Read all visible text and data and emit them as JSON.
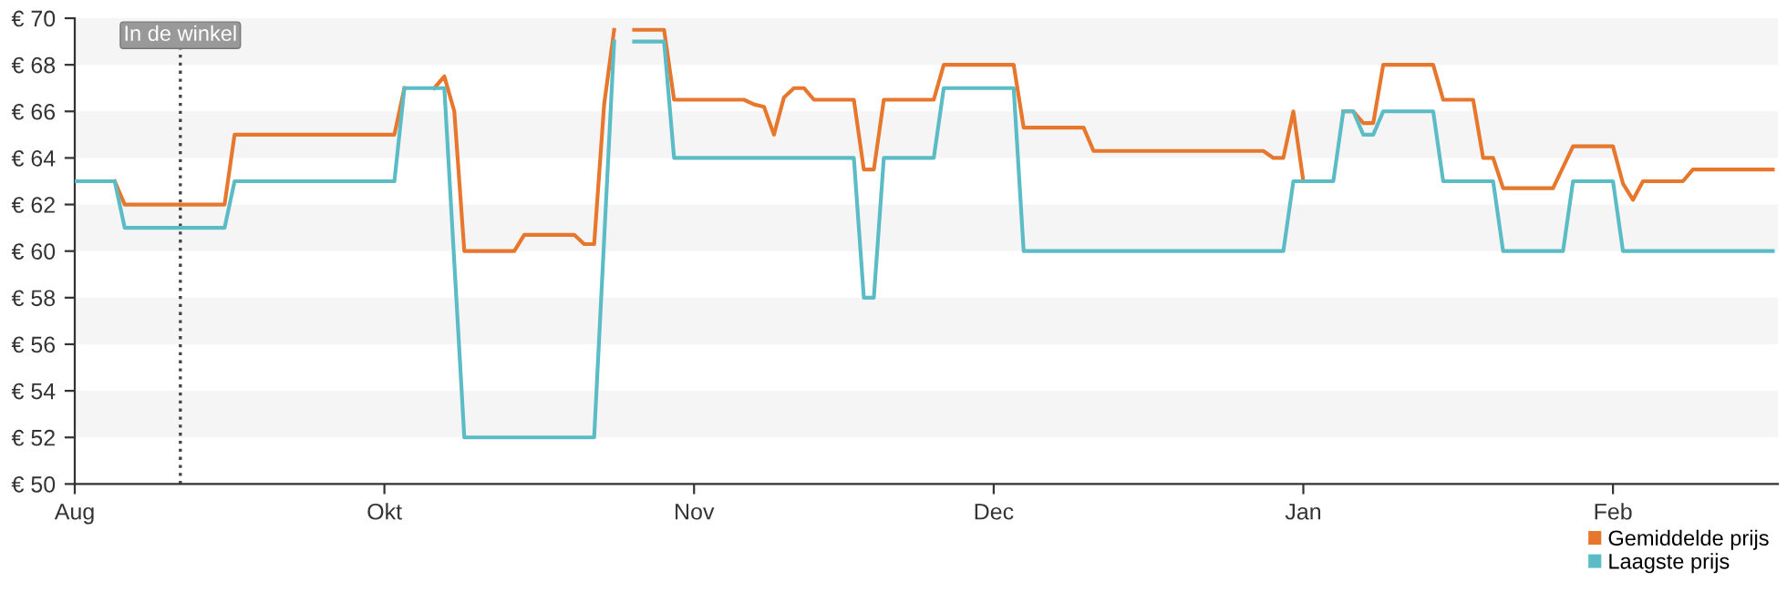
{
  "chart_data": {
    "type": "line",
    "categories": [
      "Aug",
      null,
      null,
      null,
      null,
      null,
      null,
      null,
      null,
      null,
      null,
      null,
      null,
      null,
      null,
      null,
      null,
      null,
      null,
      null,
      null,
      null,
      null,
      null,
      null,
      null,
      null,
      null,
      null,
      null,
      null,
      "Okt",
      null,
      null,
      null,
      null,
      null,
      null,
      null,
      null,
      null,
      null,
      null,
      null,
      null,
      null,
      null,
      null,
      null,
      null,
      null,
      null,
      null,
      null,
      null,
      null,
      null,
      null,
      null,
      null,
      null,
      null,
      "Nov",
      null,
      null,
      null,
      null,
      null,
      null,
      null,
      null,
      null,
      null,
      null,
      null,
      null,
      null,
      null,
      null,
      null,
      null,
      null,
      null,
      null,
      null,
      null,
      null,
      null,
      null,
      null,
      null,
      null,
      "Dec",
      null,
      null,
      null,
      null,
      null,
      null,
      null,
      null,
      null,
      null,
      null,
      null,
      null,
      null,
      null,
      null,
      null,
      null,
      null,
      null,
      null,
      null,
      null,
      null,
      null,
      null,
      null,
      null,
      null,
      null,
      "Jan",
      null,
      null,
      null,
      null,
      null,
      null,
      null,
      null,
      null,
      null,
      null,
      null,
      null,
      null,
      null,
      null,
      null,
      null,
      null,
      null,
      null,
      null,
      null,
      null,
      null,
      null,
      null,
      null,
      null,
      null,
      "Feb",
      null,
      null,
      null,
      null,
      null,
      null,
      null,
      null,
      null,
      null,
      null,
      null,
      null,
      null,
      null,
      null
    ],
    "series": [
      {
        "name": "Gemiddelde prijs",
        "color": "#e8772e",
        "values": [
          null,
          null,
          null,
          null,
          63,
          62,
          62,
          62,
          62,
          62,
          62,
          62,
          62,
          62,
          62,
          62,
          65,
          65,
          65,
          65,
          65,
          65,
          65,
          65,
          65,
          65,
          65,
          65,
          65,
          65,
          65,
          65,
          65,
          67,
          null,
          null,
          67,
          67.5,
          66,
          60,
          60,
          60,
          60,
          60,
          60,
          60.7,
          60.7,
          60.7,
          60.7,
          60.7,
          60.7,
          60.3,
          60.3,
          66.3,
          69.5,
          null,
          69.5,
          69.5,
          69.5,
          69.5,
          66.5,
          66.5,
          66.5,
          66.5,
          66.5,
          66.5,
          66.5,
          66.5,
          66.3,
          66.2,
          65,
          66.6,
          67,
          67,
          66.5,
          66.5,
          66.5,
          66.5,
          66.5,
          63.5,
          63.5,
          66.5,
          66.5,
          66.5,
          66.5,
          66.5,
          66.5,
          68,
          68,
          68,
          68,
          68,
          68,
          68,
          68,
          65.3,
          65.3,
          65.3,
          65.3,
          65.3,
          65.3,
          65.3,
          64.3,
          64.3,
          64.3,
          64.3,
          64.3,
          64.3,
          64.3,
          64.3,
          64.3,
          64.3,
          64.3,
          64.3,
          64.3,
          64.3,
          64.3,
          64.3,
          64.3,
          64.3,
          64,
          64,
          66,
          63,
          null,
          null,
          null,
          66,
          66,
          65.5,
          65.5,
          68,
          68,
          68,
          68,
          68,
          68,
          66.5,
          66.5,
          66.5,
          66.5,
          64,
          64,
          62.7,
          62.7,
          62.7,
          62.7,
          62.7,
          62.7,
          63.6,
          64.5,
          64.5,
          64.5,
          64.5,
          64.5,
          62.9,
          62.2,
          63,
          63,
          63,
          63,
          63,
          63.5,
          63.5,
          63.5,
          63.5,
          63.5,
          63.5,
          63.5,
          63.5,
          63.5
        ]
      },
      {
        "name": "Laagste prijs",
        "color": "#5bbcc6",
        "values": [
          63,
          63,
          63,
          63,
          63,
          61,
          61,
          61,
          61,
          61,
          61,
          61,
          61,
          61,
          61,
          61,
          63,
          63,
          63,
          63,
          63,
          63,
          63,
          63,
          63,
          63,
          63,
          63,
          63,
          63,
          63,
          63,
          63,
          67,
          67,
          67,
          67,
          67,
          59.5,
          52,
          52,
          52,
          52,
          52,
          52,
          52,
          52,
          52,
          52,
          52,
          52,
          52,
          52,
          60.5,
          69,
          null,
          69,
          69,
          69,
          69,
          64,
          64,
          64,
          64,
          64,
          64,
          64,
          64,
          64,
          64,
          64,
          64,
          64,
          64,
          64,
          64,
          64,
          64,
          64,
          58,
          58,
          64,
          64,
          64,
          64,
          64,
          64,
          67,
          67,
          67,
          67,
          67,
          67,
          67,
          67,
          60,
          60,
          60,
          60,
          60,
          60,
          60,
          60,
          60,
          60,
          60,
          60,
          60,
          60,
          60,
          60,
          60,
          60,
          60,
          60,
          60,
          60,
          60,
          60,
          60,
          60,
          60,
          63,
          63,
          63,
          63,
          63,
          66,
          66,
          65,
          65,
          66,
          66,
          66,
          66,
          66,
          66,
          63,
          63,
          63,
          63,
          63,
          63,
          60,
          60,
          60,
          60,
          60,
          60,
          60,
          63,
          63,
          63,
          63,
          63,
          60,
          60,
          60,
          60,
          60,
          60,
          60,
          60,
          60,
          60,
          60,
          60,
          60,
          60,
          60,
          60
        ]
      }
    ],
    "ylim": [
      50,
      70
    ],
    "yticks": [
      {
        "value": 50,
        "label": "€ 50"
      },
      {
        "value": 52,
        "label": "€ 52"
      },
      {
        "value": 54,
        "label": "€ 54"
      },
      {
        "value": 56,
        "label": "€ 56"
      },
      {
        "value": 58,
        "label": "€ 58"
      },
      {
        "value": 60,
        "label": "€ 60"
      },
      {
        "value": 62,
        "label": "€ 62"
      },
      {
        "value": 64,
        "label": "€ 64"
      },
      {
        "value": 66,
        "label": "€ 66"
      },
      {
        "value": 68,
        "label": "€ 68"
      },
      {
        "value": 70,
        "label": "€ 70"
      }
    ],
    "annotations": [
      "In de winkel"
    ],
    "bands": [
      {
        "axis": "y",
        "from": 52,
        "to": 54,
        "color": "#f5f5f5"
      },
      {
        "axis": "y",
        "from": 56,
        "to": 58,
        "color": "#f5f5f5"
      },
      {
        "axis": "y",
        "from": 60,
        "to": 62,
        "color": "#f5f5f5"
      },
      {
        "axis": "y",
        "from": 64,
        "to": 66,
        "color": "#f5f5f5"
      },
      {
        "axis": "y",
        "from": 68,
        "to": 70,
        "color": "#f5f5f5"
      }
    ],
    "legend": "bottom right",
    "marker": "none",
    "line_style": "solid"
  }
}
